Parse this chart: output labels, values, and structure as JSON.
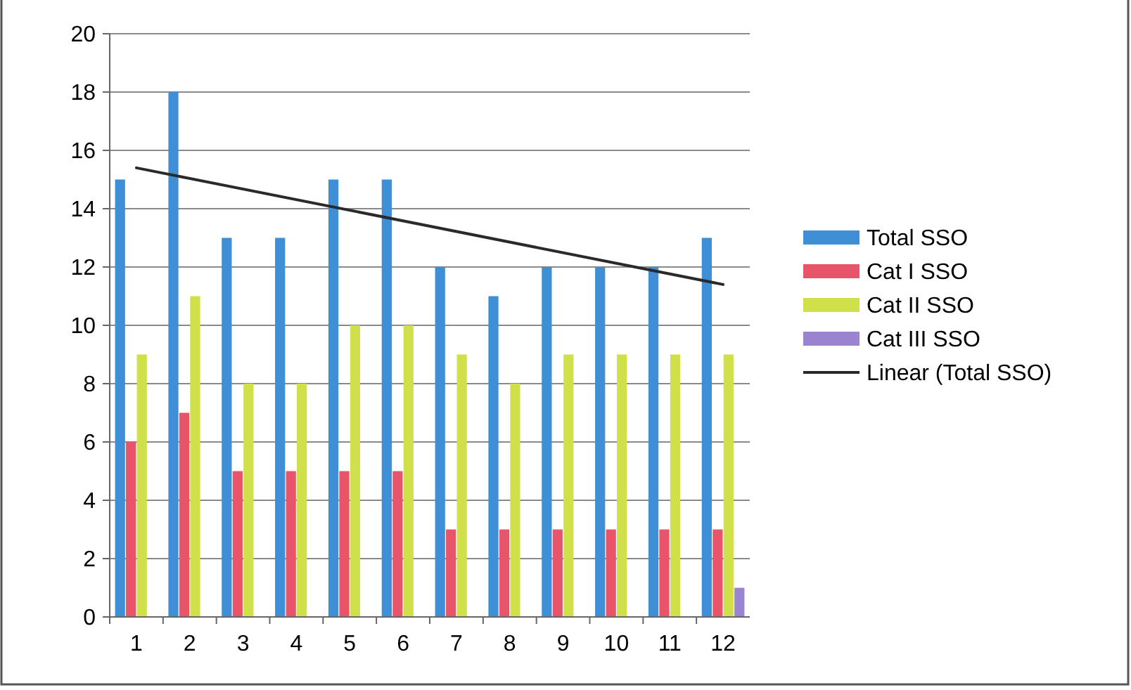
{
  "chart_data": {
    "type": "bar",
    "categories": [
      "1",
      "2",
      "3",
      "4",
      "5",
      "6",
      "7",
      "8",
      "9",
      "10",
      "11",
      "12"
    ],
    "series": [
      {
        "name": "Total SSO",
        "color": "#3f8fd6",
        "values": [
          15,
          18,
          13,
          13,
          15,
          15,
          12,
          11,
          12,
          12,
          12,
          13
        ]
      },
      {
        "name": "Cat I SSO",
        "color": "#e8546a",
        "values": [
          6,
          7,
          5,
          5,
          5,
          5,
          3,
          3,
          3,
          3,
          3,
          3
        ]
      },
      {
        "name": "Cat II SSO",
        "color": "#cfe04a",
        "values": [
          9,
          11,
          8,
          8,
          10,
          10,
          9,
          8,
          9,
          9,
          9,
          9
        ]
      },
      {
        "name": "Cat III SSO",
        "color": "#9b84cf",
        "values": [
          0,
          0,
          0,
          0,
          0,
          0,
          0,
          0,
          0,
          0,
          0,
          1
        ]
      },
      {
        "name": "Linear (Total SSO)",
        "type": "line",
        "color": "#2a2a2a",
        "x": [
          "1",
          "12"
        ],
        "values": [
          15.4,
          11.4
        ]
      }
    ],
    "ylim": [
      0,
      20
    ],
    "yticks": [
      0,
      2,
      4,
      6,
      8,
      10,
      12,
      14,
      16,
      18,
      20
    ],
    "grid": "y",
    "legend": "right"
  }
}
